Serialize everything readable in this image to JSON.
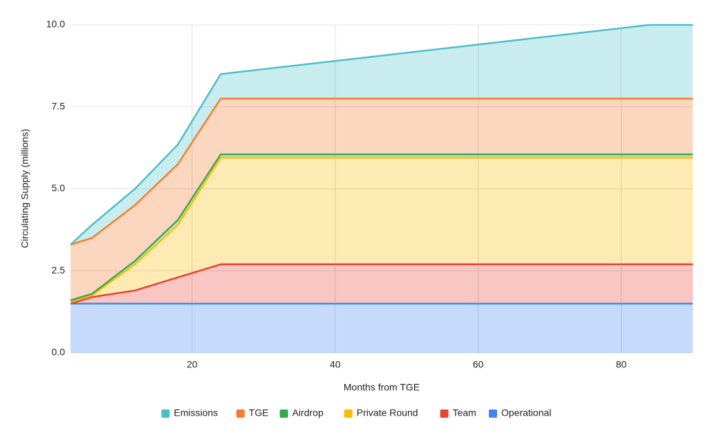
{
  "chart_data": {
    "type": "stacked_area",
    "x_label": "Months from TGE",
    "y_label": "Circulating Supply (millions)",
    "x": [
      3,
      6,
      12,
      18,
      24,
      84,
      90
    ],
    "xlim": [
      3,
      90
    ],
    "xticks": [
      20,
      40,
      60,
      80
    ],
    "ylim": [
      0,
      10
    ],
    "yticks": [
      {
        "value": 0,
        "label": "0.0"
      },
      {
        "value": 2.5,
        "label": "2.5"
      },
      {
        "value": 5,
        "label": "5.0"
      },
      {
        "value": 7.5,
        "label": "7.5"
      },
      {
        "value": 10,
        "label": "10.0"
      }
    ],
    "grid": true,
    "legend": "bottom",
    "series": [
      {
        "name": "Operational",
        "color": "#4285f4",
        "values": [
          1.5,
          1.5,
          1.5,
          1.5,
          1.5,
          1.5,
          1.5
        ]
      },
      {
        "name": "Team",
        "color": "#ea4335",
        "values": [
          0,
          0.2,
          0.4,
          0.8,
          1.2,
          1.2,
          1.2
        ]
      },
      {
        "name": "Private Round",
        "color": "#fbbc04",
        "values": [
          0.05,
          0.05,
          0.8,
          1.6,
          3.25,
          3.25,
          3.25
        ]
      },
      {
        "name": "Airdrop",
        "color": "#34a853",
        "values": [
          0.05,
          0.05,
          0.1,
          0.15,
          0.1,
          0.1,
          0.1
        ]
      },
      {
        "name": "TGE",
        "color": "#f57c2b",
        "values": [
          1.7,
          1.7,
          1.7,
          1.7,
          1.7,
          1.7,
          1.7
        ]
      },
      {
        "name": "Emissions",
        "color": "#4bbfc9",
        "values": [
          0,
          0.4,
          0.5,
          0.6,
          0.75,
          2.25,
          2.25
        ]
      }
    ]
  }
}
